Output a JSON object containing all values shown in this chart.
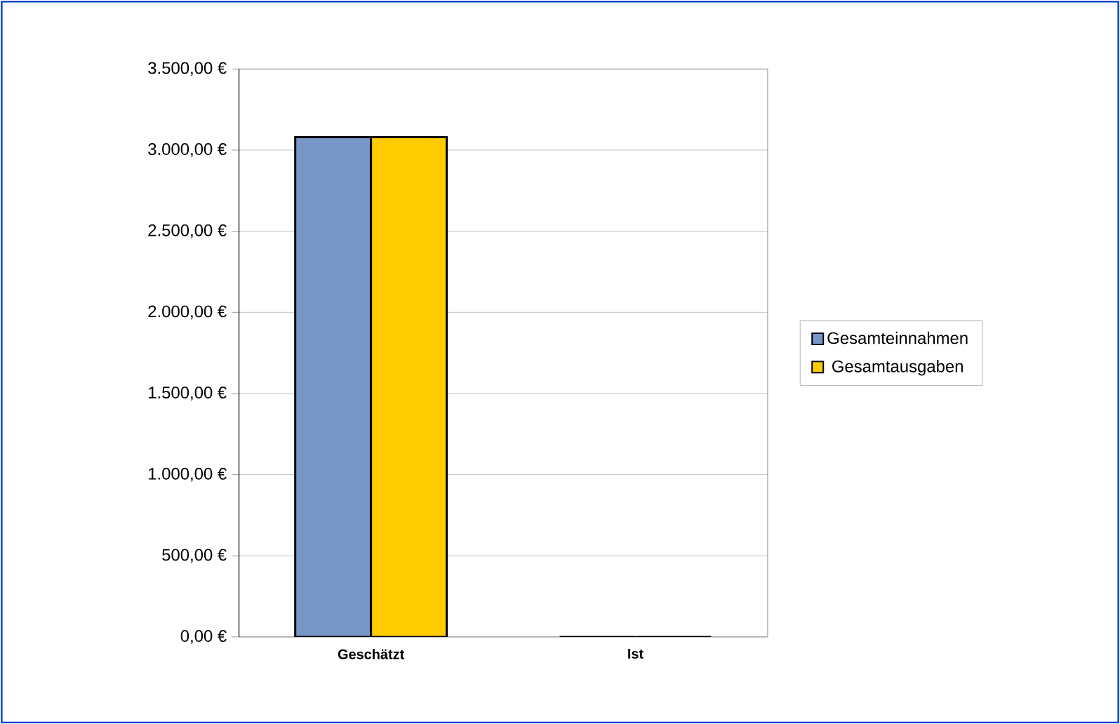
{
  "chart_data": {
    "type": "bar",
    "categories": [
      "Geschätzt",
      "Ist"
    ],
    "series": [
      {
        "name": "Gesamteinnahmen",
        "color": "#7996c9",
        "values": [
          3080,
          0
        ]
      },
      {
        "name": "Gesamtausgaben",
        "color": "#ffcc00",
        "values": [
          3080,
          0
        ]
      }
    ],
    "ylim": [
      0,
      3500
    ],
    "yticks": [
      {
        "value": 0,
        "label": "0,00 €"
      },
      {
        "value": 500,
        "label": "500,00 €"
      },
      {
        "value": 1000,
        "label": "1.000,00 €"
      },
      {
        "value": 1500,
        "label": "1.500,00 €"
      },
      {
        "value": 2000,
        "label": "2.000,00 €"
      },
      {
        "value": 2500,
        "label": "2.500,00 €"
      },
      {
        "value": 3000,
        "label": "3.000,00 €"
      },
      {
        "value": 3500,
        "label": "3.500,00 €"
      }
    ],
    "grid": "y",
    "legend": "right"
  }
}
